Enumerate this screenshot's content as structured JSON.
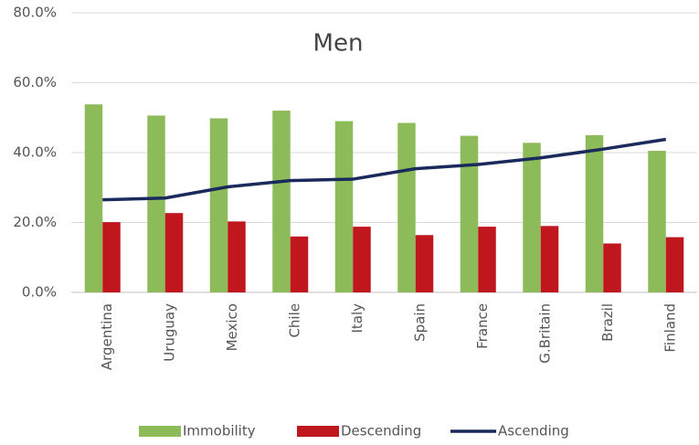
{
  "chart_data": {
    "type": "bar_line",
    "title": "Men",
    "categories": [
      "Argentina",
      "Uruguay",
      "Mexico",
      "Chile",
      "Italy",
      "Spain",
      "France",
      "G.Britain",
      "Brazil",
      "Finland"
    ],
    "series": [
      {
        "name": "Immobility",
        "type": "bar",
        "color": "#8dbb5a",
        "values": [
          53.8,
          50.6,
          49.8,
          52.0,
          49.0,
          48.5,
          44.8,
          42.8,
          45.0,
          40.5
        ]
      },
      {
        "name": "Descending",
        "type": "bar",
        "color": "#c0161e",
        "values": [
          20.1,
          22.7,
          20.3,
          16.0,
          18.8,
          16.4,
          18.8,
          19.0,
          14.0,
          15.8
        ]
      },
      {
        "name": "Ascending",
        "type": "line",
        "color": "#1b2a5c",
        "values": [
          26.5,
          27.0,
          30.2,
          32.0,
          32.4,
          35.4,
          36.6,
          38.5,
          41.0,
          43.8
        ]
      }
    ],
    "ylim": [
      0,
      80
    ],
    "yticks": [
      {
        "value": 0,
        "label": "0.0%"
      },
      {
        "value": 20,
        "label": "20.0%"
      },
      {
        "value": 40,
        "label": "40.0%"
      },
      {
        "value": 60,
        "label": "60.0%"
      },
      {
        "value": 80,
        "label": "80.0%"
      }
    ],
    "grid": true,
    "legend": "bottom"
  }
}
